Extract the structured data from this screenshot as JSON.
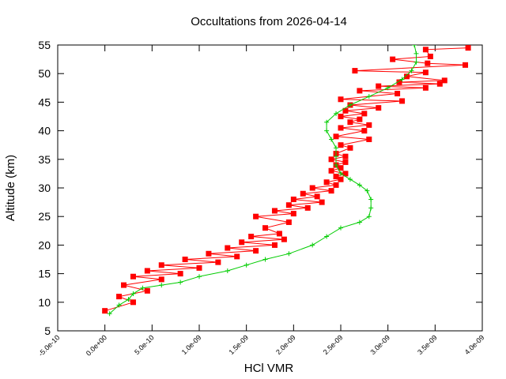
{
  "chart_data": {
    "type": "line",
    "title": "Occultations from 2026-04-14",
    "xlabel": "HCl VMR",
    "ylabel": "Altitude (km)",
    "xlim": [
      -5e-10,
      4e-09
    ],
    "ylim": [
      5,
      55
    ],
    "x_ticks": [
      -5e-10,
      0,
      5e-10,
      1e-09,
      1.5e-09,
      2e-09,
      2.5e-09,
      3e-09,
      3.5e-09,
      4e-09
    ],
    "x_tick_labels": [
      "-5.0e-10",
      "0.0e+00",
      "5.0e-10",
      "1.0e-09",
      "1.5e-09",
      "2.0e-09",
      "2.5e-09",
      "3.0e-09",
      "3.5e-09",
      "4.0e-09"
    ],
    "y_ticks": [
      5,
      10,
      15,
      20,
      25,
      30,
      35,
      40,
      45,
      50,
      55
    ],
    "y_tick_labels": [
      "5",
      "10",
      "15",
      "20",
      "25",
      "30",
      "35",
      "40",
      "45",
      "50",
      "55"
    ],
    "grid": false,
    "legend": "none",
    "colors": {
      "red_series": "#ff0000",
      "green_series": "#00cc00",
      "axes": "#000000"
    },
    "series": [
      {
        "marker": "filled-square",
        "color": "#ff0000",
        "x": [
          3.85e-09,
          3.4e-09,
          3.45e-09,
          3.05e-09,
          3.42e-09,
          3.82e-09,
          2.65e-09,
          3.4e-09,
          3.2e-09,
          3.6e-09,
          3.12e-09,
          3.55e-09,
          2.9e-09,
          3.4e-09,
          2.7e-09,
          3.1e-09,
          2.5e-09,
          3.15e-09,
          2.6e-09,
          2.9e-09,
          2.55e-09,
          2.75e-09,
          2.5e-09,
          2.7e-09,
          2.6e-09,
          2.8e-09,
          2.5e-09,
          2.75e-09,
          2.45e-09,
          2.8e-09,
          2.5e-09,
          2.6e-09,
          2.45e-09,
          2.55e-09,
          2.4e-09,
          2.55e-09,
          2.45e-09,
          2.5e-09,
          2.4e-09,
          2.55e-09,
          2.45e-09,
          2.5e-09,
          2.35e-09,
          2.45e-09,
          2.2e-09,
          2.4e-09,
          2.1e-09,
          2.25e-09,
          2e-09,
          2.3e-09,
          1.95e-09,
          2.15e-09,
          1.8e-09,
          2e-09,
          1.6e-09,
          1.95e-09,
          1.7e-09,
          1.85e-09,
          1.55e-09,
          1.9e-09,
          1.45e-09,
          1.8e-09,
          1.3e-09,
          1.6e-09,
          1.1e-09,
          1.4e-09,
          8.5e-10,
          1.2e-09,
          6e-10,
          1e-09,
          4.5e-10,
          8e-10,
          3e-10,
          6e-10,
          2e-10,
          4.5e-10,
          1.5e-10,
          3e-10,
          0.0
        ],
        "y": [
          54.5,
          54.2,
          53.0,
          52.5,
          51.8,
          51.5,
          50.5,
          50.2,
          49.5,
          48.8,
          48.5,
          48.2,
          47.8,
          47.5,
          47.0,
          46.5,
          45.5,
          45.2,
          44.5,
          44.0,
          43.5,
          43.0,
          42.5,
          42.0,
          41.5,
          41.0,
          40.5,
          40.0,
          39.0,
          38.5,
          37.5,
          37.0,
          36.0,
          35.5,
          35.0,
          34.5,
          34.0,
          33.5,
          33.0,
          32.5,
          32.0,
          31.5,
          31.0,
          30.5,
          30.0,
          29.5,
          29.0,
          28.5,
          28.0,
          27.5,
          27.0,
          26.5,
          26.0,
          25.5,
          25.0,
          24.0,
          23.0,
          22.0,
          21.5,
          21.0,
          20.5,
          20.0,
          19.5,
          19.0,
          18.5,
          18.0,
          17.5,
          17.0,
          16.5,
          16.0,
          15.5,
          15.0,
          14.5,
          14.0,
          13.0,
          12.0,
          11.0,
          10.0,
          8.5
        ]
      },
      {
        "marker": "plus",
        "color": "#00cc00",
        "x": [
          3.28e-09,
          3.3e-09,
          3.3e-09,
          3.25e-09,
          3.15e-09,
          3e-09,
          2.8e-09,
          2.6e-09,
          2.45e-09,
          2.35e-09,
          2.35e-09,
          2.4e-09,
          2.45e-09,
          2.45e-09,
          2.45e-09,
          2.5e-09,
          2.6e-09,
          2.7e-09,
          2.78e-09,
          2.82e-09,
          2.82e-09,
          2.8e-09,
          2.7e-09,
          2.5e-09,
          2.35e-09,
          2.2e-09,
          1.95e-09,
          1.7e-09,
          1.5e-09,
          1.3e-09,
          1e-09,
          8e-10,
          6e-10,
          4e-10,
          3e-10,
          2.5e-10,
          1.5e-10,
          5e-11
        ],
        "y": [
          55.0,
          53.5,
          52.0,
          50.5,
          49.0,
          47.5,
          46.0,
          44.5,
          43.0,
          41.5,
          40.0,
          38.5,
          37.0,
          35.5,
          34.0,
          32.5,
          31.5,
          30.5,
          29.5,
          28.0,
          26.5,
          25.0,
          24.0,
          23.0,
          21.5,
          20.0,
          18.5,
          17.5,
          16.5,
          15.5,
          14.5,
          13.5,
          13.0,
          12.5,
          11.5,
          10.5,
          9.5,
          8.0
        ]
      }
    ]
  }
}
